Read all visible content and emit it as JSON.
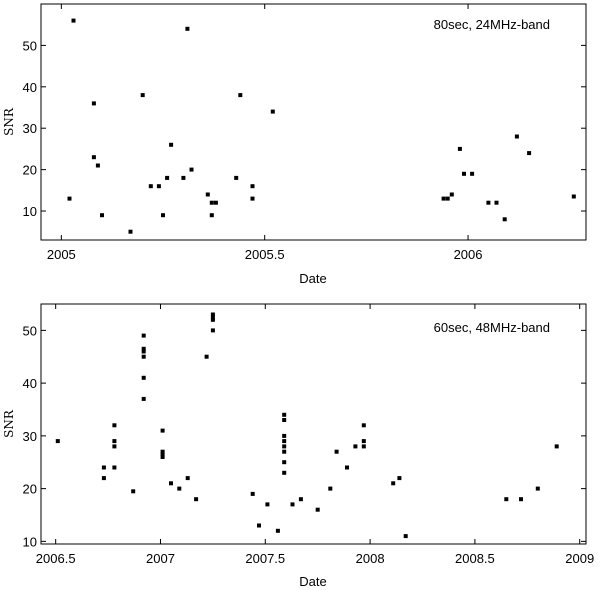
{
  "chart_data": [
    {
      "type": "scatter",
      "annotation": "80sec, 24MHz-band",
      "xlabel": "Date",
      "ylabel": "SNR",
      "xlim": [
        2004.95,
        2006.29
      ],
      "ylim": [
        3,
        60
      ],
      "xticks": [
        2005,
        2005.5,
        2006
      ],
      "xtick_labels": [
        "2005",
        "2005.5",
        "2006"
      ],
      "yticks": [
        10,
        20,
        30,
        40,
        50
      ],
      "ytick_labels": [
        "10",
        "20",
        "30",
        "40",
        "50"
      ],
      "grid": false,
      "points": [
        [
          2005.02,
          13
        ],
        [
          2005.03,
          56
        ],
        [
          2005.08,
          36
        ],
        [
          2005.08,
          23
        ],
        [
          2005.09,
          21
        ],
        [
          2005.1,
          9
        ],
        [
          2005.17,
          5
        ],
        [
          2005.2,
          38
        ],
        [
          2005.22,
          16
        ],
        [
          2005.24,
          16
        ],
        [
          2005.25,
          9
        ],
        [
          2005.26,
          18
        ],
        [
          2005.27,
          26
        ],
        [
          2005.3,
          18
        ],
        [
          2005.31,
          54
        ],
        [
          2005.32,
          20
        ],
        [
          2005.36,
          14
        ],
        [
          2005.37,
          12
        ],
        [
          2005.37,
          9
        ],
        [
          2005.38,
          12
        ],
        [
          2005.43,
          18
        ],
        [
          2005.44,
          38
        ],
        [
          2005.47,
          16
        ],
        [
          2005.47,
          13
        ],
        [
          2005.52,
          34
        ],
        [
          2005.94,
          13
        ],
        [
          2005.95,
          13
        ],
        [
          2005.96,
          14
        ],
        [
          2005.98,
          25
        ],
        [
          2005.99,
          19
        ],
        [
          2006.01,
          19
        ],
        [
          2006.05,
          12
        ],
        [
          2006.07,
          12
        ],
        [
          2006.09,
          8
        ],
        [
          2006.12,
          28
        ],
        [
          2006.15,
          24
        ],
        [
          2006.26,
          13.5
        ]
      ]
    },
    {
      "type": "scatter",
      "annotation": "60sec, 48MHz-band",
      "xlabel": "Date",
      "ylabel": "SNR",
      "xlim": [
        2006.43,
        2009.03
      ],
      "ylim": [
        9.5,
        55
      ],
      "xticks": [
        2006.5,
        2007,
        2007.5,
        2008,
        2008.5,
        2009
      ],
      "xtick_labels": [
        "2006.5",
        "2007",
        "2007.5",
        "2008",
        "2008.5",
        "2009"
      ],
      "yticks": [
        10,
        20,
        30,
        40,
        50
      ],
      "ytick_labels": [
        "10",
        "20",
        "30",
        "40",
        "50"
      ],
      "grid": false,
      "points": [
        [
          2006.51,
          29
        ],
        [
          2006.73,
          24
        ],
        [
          2006.73,
          22
        ],
        [
          2006.78,
          32
        ],
        [
          2006.78,
          29
        ],
        [
          2006.78,
          28
        ],
        [
          2006.78,
          24
        ],
        [
          2006.87,
          19.5
        ],
        [
          2006.92,
          49
        ],
        [
          2006.92,
          46.5
        ],
        [
          2006.92,
          46
        ],
        [
          2006.92,
          45
        ],
        [
          2006.92,
          41
        ],
        [
          2006.92,
          37
        ],
        [
          2007.01,
          31
        ],
        [
          2007.01,
          27
        ],
        [
          2007.01,
          26.5
        ],
        [
          2007.01,
          26
        ],
        [
          2007.05,
          21
        ],
        [
          2007.09,
          20
        ],
        [
          2007.13,
          22
        ],
        [
          2007.17,
          18
        ],
        [
          2007.22,
          45
        ],
        [
          2007.25,
          53
        ],
        [
          2007.25,
          52.5
        ],
        [
          2007.25,
          52
        ],
        [
          2007.25,
          50
        ],
        [
          2007.44,
          19
        ],
        [
          2007.47,
          13
        ],
        [
          2007.51,
          17
        ],
        [
          2007.56,
          12
        ],
        [
          2007.59,
          34
        ],
        [
          2007.59,
          33
        ],
        [
          2007.59,
          30
        ],
        [
          2007.59,
          29
        ],
        [
          2007.59,
          28
        ],
        [
          2007.59,
          27
        ],
        [
          2007.59,
          25
        ],
        [
          2007.59,
          23
        ],
        [
          2007.63,
          17
        ],
        [
          2007.67,
          18
        ],
        [
          2007.75,
          16
        ],
        [
          2007.81,
          20
        ],
        [
          2007.84,
          27
        ],
        [
          2007.89,
          24
        ],
        [
          2007.93,
          28
        ],
        [
          2007.97,
          32
        ],
        [
          2007.97,
          29
        ],
        [
          2007.97,
          28
        ],
        [
          2008.11,
          21
        ],
        [
          2008.14,
          22
        ],
        [
          2008.17,
          11
        ],
        [
          2008.65,
          18
        ],
        [
          2008.72,
          18
        ],
        [
          2008.8,
          20
        ],
        [
          2008.89,
          28
        ]
      ]
    }
  ]
}
